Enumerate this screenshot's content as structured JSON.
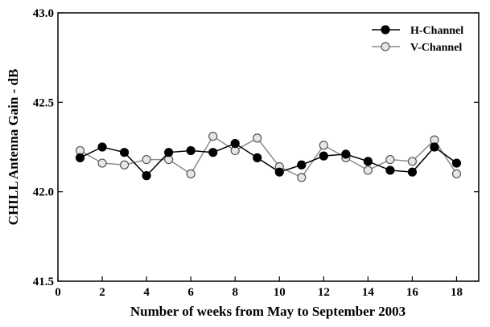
{
  "chart_data": {
    "type": "line",
    "xlabel": "Number of weeks from May to September 2003",
    "ylabel": "CHILL Antenna Gain - dB",
    "xlim": [
      0,
      19
    ],
    "ylim": [
      41.5,
      43.0
    ],
    "xticks": [
      0,
      2,
      4,
      6,
      8,
      10,
      12,
      14,
      16,
      18
    ],
    "yticks": [
      41.5,
      42.0,
      42.5,
      43.0
    ],
    "ytick_labels": [
      "41.5",
      "42.0",
      "42.5",
      "43.0"
    ],
    "legend_position": "top-right",
    "grid": false,
    "x": [
      1,
      2,
      3,
      4,
      5,
      6,
      7,
      8,
      9,
      10,
      11,
      12,
      13,
      14,
      15,
      16,
      17,
      18
    ],
    "series": [
      {
        "name": "H-Channel",
        "marker": "filled-circle",
        "line_color": "#000000",
        "values": [
          42.19,
          42.25,
          42.22,
          42.09,
          42.22,
          42.23,
          42.22,
          42.27,
          42.19,
          42.11,
          42.15,
          42.2,
          42.21,
          42.17,
          42.12,
          42.11,
          42.25,
          42.16
        ]
      },
      {
        "name": "V-Channel",
        "marker": "open-circle",
        "line_color": "#8c8c8c",
        "values": [
          42.23,
          42.16,
          42.15,
          42.18,
          42.18,
          42.1,
          42.31,
          42.23,
          42.3,
          42.14,
          42.08,
          42.26,
          42.19,
          42.12,
          42.18,
          42.17,
          42.29,
          42.1
        ]
      }
    ]
  }
}
